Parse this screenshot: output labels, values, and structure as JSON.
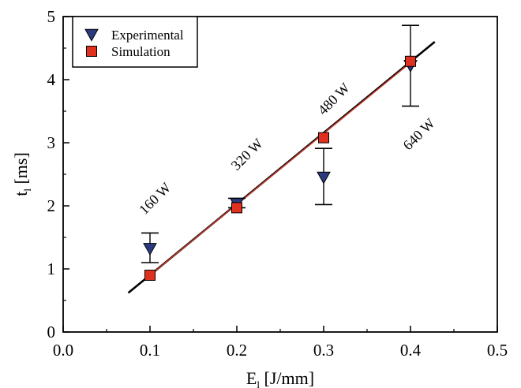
{
  "chart_data": {
    "type": "scatter",
    "xlabel": "E",
    "xlabel_sub": "l",
    "xlabel_unit": " [J/mm]",
    "ylabel": "t",
    "ylabel_sub": "l",
    "ylabel_unit": " [ms]",
    "xlim": [
      0.0,
      0.5
    ],
    "ylim": [
      0,
      5
    ],
    "xticks": [
      "0.0",
      "0.1",
      "0.2",
      "0.3",
      "0.4",
      "0.5"
    ],
    "yticks": [
      "0",
      "1",
      "2",
      "3",
      "4",
      "5"
    ],
    "grid": false,
    "legend_position": "top-left",
    "series": [
      {
        "name": "Experimental",
        "marker": "triangle-down",
        "color": "#2b3a80",
        "x": [
          0.1,
          0.2,
          0.3,
          0.4
        ],
        "y": [
          1.32,
          2.03,
          2.45,
          4.22
        ],
        "err_low": [
          1.1,
          1.97,
          2.02,
          3.58
        ],
        "err_high": [
          1.57,
          2.12,
          2.91,
          4.86
        ]
      },
      {
        "name": "Simulation",
        "marker": "square",
        "color": "#e03020",
        "x": [
          0.1,
          0.2,
          0.3,
          0.4
        ],
        "y": [
          0.9,
          1.97,
          3.08,
          4.29
        ]
      }
    ],
    "fit_lines": [
      {
        "color": "#000000",
        "x": [
          0.075,
          0.428
        ],
        "y": [
          0.62,
          4.6
        ]
      },
      {
        "color": "#c0392b",
        "x": [
          0.1,
          0.4
        ],
        "y": [
          0.9,
          4.27
        ]
      }
    ],
    "annotations": [
      {
        "text": "160 W",
        "x": 0.094,
        "y": 1.85
      },
      {
        "text": "320 W",
        "x": 0.2,
        "y": 2.55
      },
      {
        "text": "480 W",
        "x": 0.3,
        "y": 3.43
      },
      {
        "text": "640 W",
        "x": 0.398,
        "y": 2.87
      }
    ]
  }
}
